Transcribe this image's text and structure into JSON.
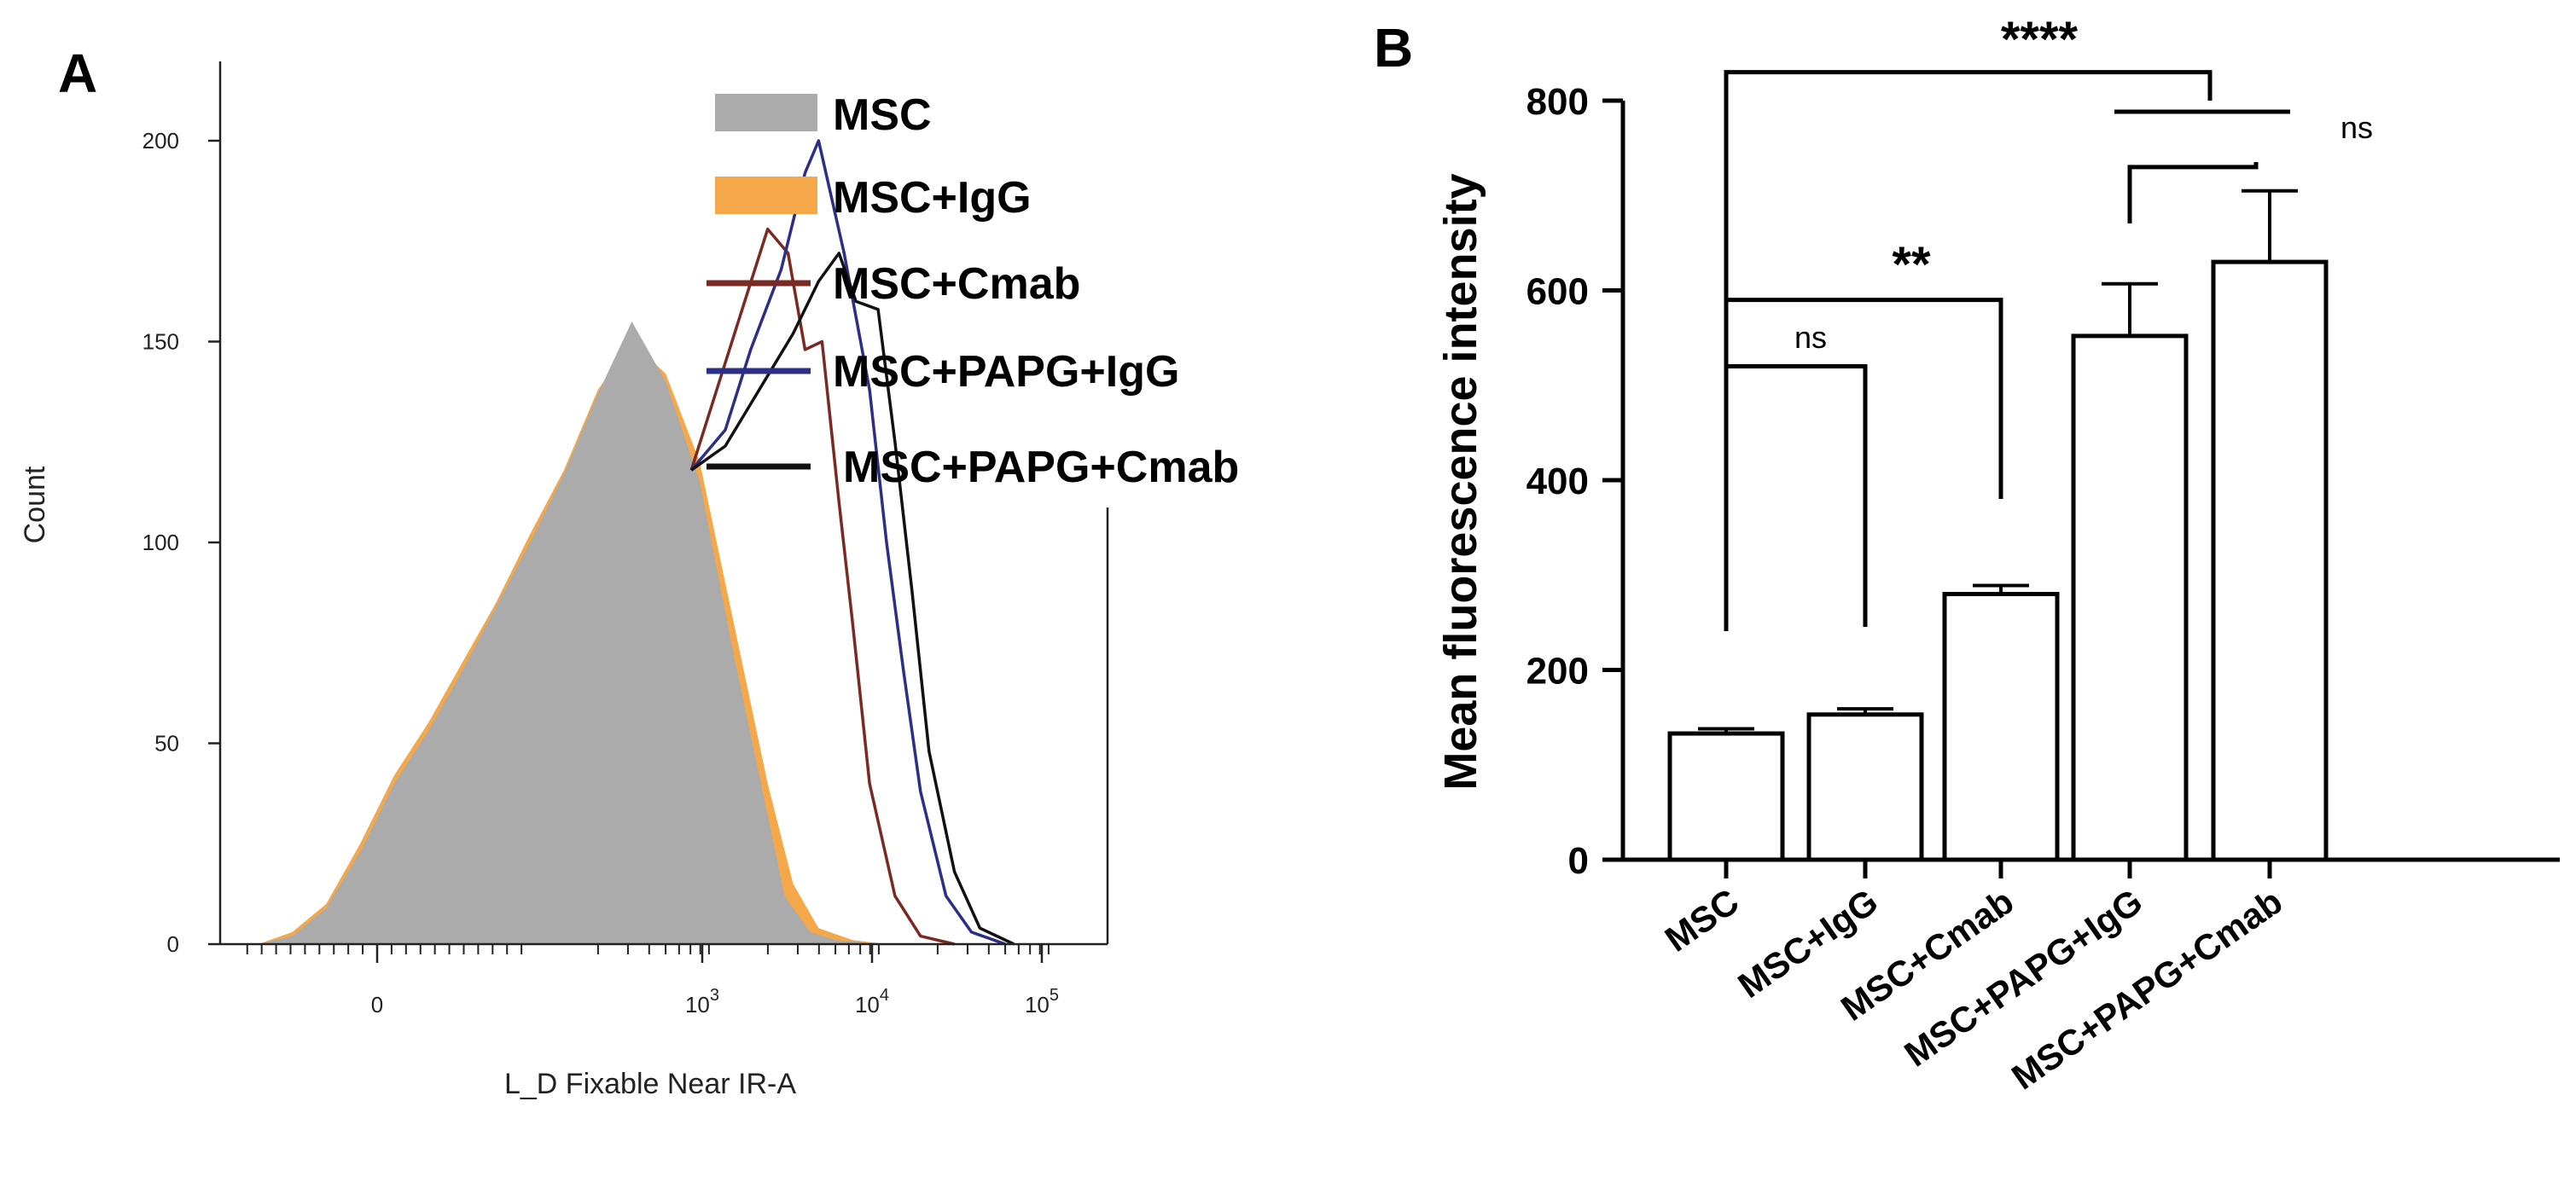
{
  "chart_data": [
    {
      "panel": "A",
      "type": "histogram",
      "xlabel": "L_D Fixable Near IR-A",
      "ylabel": "Count",
      "ylim": [
        0,
        220
      ],
      "y_ticks": [
        "0",
        "50",
        "100",
        "150",
        "200"
      ],
      "x_ticks": [
        {
          "base": "0",
          "exp": ""
        },
        {
          "base": "10",
          "exp": "3"
        },
        {
          "base": "10",
          "exp": "4"
        },
        {
          "base": "10",
          "exp": "5"
        }
      ],
      "legend": [
        {
          "label": "MSC",
          "style": "fill",
          "color": "#ababab"
        },
        {
          "label": "MSC+IgG",
          "style": "fill",
          "color": "#f5a84a"
        },
        {
          "label": "MSC+Cmab",
          "style": "line",
          "color": "#7a2a22"
        },
        {
          "label": "MSC+PAPG+IgG",
          "style": "line",
          "color": "#2c2f85"
        },
        {
          "label": "MSC+PAPG+Cmab",
          "style": "line",
          "color": "#111111"
        }
      ],
      "series": [
        {
          "name": "MSC+IgG",
          "x": [
            -0.7,
            -0.5,
            -0.3,
            -0.1,
            0.1,
            0.3,
            0.5,
            0.7,
            0.9,
            1.1,
            1.3,
            1.5,
            1.7,
            1.9,
            2.1,
            2.3,
            2.45,
            2.6,
            2.8,
            3.0
          ],
          "y": [
            0,
            3,
            10,
            25,
            42,
            55,
            70,
            85,
            102,
            118,
            138,
            150,
            142,
            120,
            80,
            40,
            15,
            4,
            1,
            0
          ]
        },
        {
          "name": "MSC",
          "x": [
            -0.7,
            -0.5,
            -0.3,
            -0.1,
            0.1,
            0.3,
            0.5,
            0.7,
            0.9,
            1.1,
            1.3,
            1.5,
            1.7,
            1.9,
            2.1,
            2.3,
            2.4,
            2.55,
            2.7,
            3.0
          ],
          "y": [
            0,
            2,
            9,
            23,
            40,
            53,
            68,
            84,
            100,
            117,
            137,
            155,
            140,
            115,
            72,
            32,
            12,
            3,
            1,
            0
          ]
        },
        {
          "name": "MSC+Cmab",
          "x": [
            1.85,
            2.0,
            2.15,
            2.3,
            2.42,
            2.52,
            2.62,
            2.72,
            2.8,
            2.9,
            3.05,
            3.2,
            3.4
          ],
          "y": [
            118,
            138,
            158,
            178,
            172,
            148,
            150,
            110,
            80,
            40,
            12,
            2,
            0
          ]
        },
        {
          "name": "MSC+PAPG+IgG",
          "x": [
            1.85,
            2.05,
            2.2,
            2.38,
            2.52,
            2.6,
            2.75,
            2.9,
            3.0,
            3.1,
            3.2,
            3.35,
            3.5,
            3.7
          ],
          "y": [
            118,
            128,
            148,
            168,
            192,
            200,
            172,
            138,
            100,
            68,
            38,
            12,
            3,
            0
          ]
        },
        {
          "name": "MSC+PAPG+Cmab",
          "x": [
            1.85,
            2.05,
            2.25,
            2.45,
            2.6,
            2.72,
            2.82,
            2.95,
            3.05,
            3.15,
            3.25,
            3.4,
            3.55,
            3.75
          ],
          "y": [
            118,
            124,
            138,
            152,
            165,
            172,
            160,
            158,
            125,
            88,
            48,
            18,
            4,
            0
          ]
        }
      ]
    },
    {
      "panel": "B",
      "type": "bar",
      "ylabel": "Mean fluorescence intensity",
      "ylim": [
        0,
        800
      ],
      "y_ticks": [
        "0",
        "200",
        "400",
        "600",
        "800"
      ],
      "categories": [
        "MSC",
        "MSC+IgG",
        "MSC+Cmab",
        "MSC+PAPG+IgG",
        "MSC+PAPG+Cmab"
      ],
      "values": [
        133,
        153,
        280,
        552,
        630
      ],
      "errors": [
        5,
        6,
        9,
        55,
        75
      ],
      "significance": [
        {
          "label": "****",
          "kind": "stars",
          "from": 0,
          "to": 4,
          "level": 830
        },
        {
          "label": "ns",
          "kind": "ns",
          "from": 3,
          "to": 4,
          "level": 730
        },
        {
          "label": "**",
          "kind": "stars",
          "from": 0,
          "to": 2,
          "level": 590
        },
        {
          "label": "ns",
          "kind": "ns",
          "from": 0,
          "to": 1,
          "level": 520
        }
      ]
    }
  ]
}
